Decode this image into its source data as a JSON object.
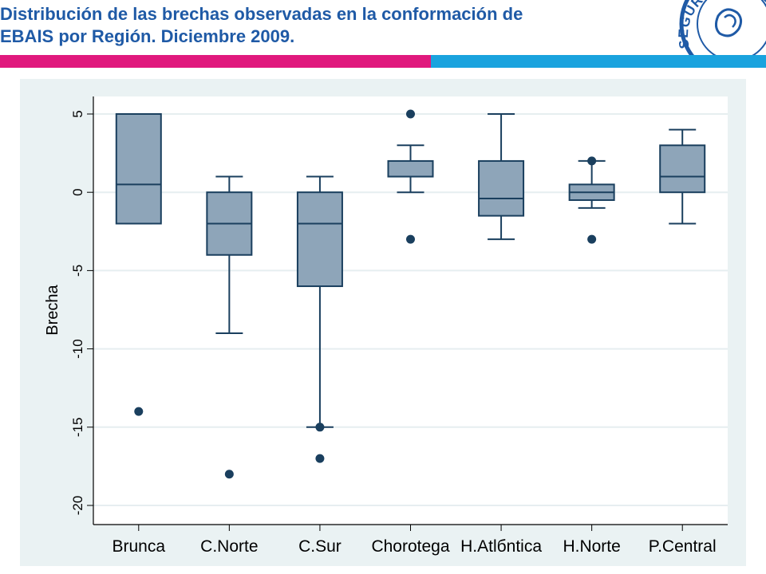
{
  "slide": {
    "title_line1": "Distribución de las brechas observadas en la conformación de",
    "title_line2": "EBAIS por Región. Diciembre 2009.",
    "logo_text": "SEGURO SOCIAL",
    "colors": {
      "title": "#1f5aa6",
      "pink_bar": "#e0197d",
      "blue_bar": "#1aa3de"
    }
  },
  "chart_data": {
    "type": "box",
    "ylabel": "Brecha",
    "xlabel": "",
    "ylim": [
      -21,
      6
    ],
    "yticks": [
      5,
      0,
      -5,
      -10,
      -15,
      -20
    ],
    "grid": true,
    "categories": [
      "Brunca",
      "C.Norte",
      "C.Sur",
      "Chorotega",
      "H.Atlбntica",
      "H.Norte",
      "P.Central"
    ],
    "boxes": [
      {
        "q1": -2,
        "median": 0.5,
        "q3": 5,
        "whisker_low": -2,
        "whisker_high": 5,
        "outliers": [
          -14
        ]
      },
      {
        "q1": -4,
        "median": -2,
        "q3": 0,
        "whisker_low": -9,
        "whisker_high": 1,
        "outliers": [
          -18
        ]
      },
      {
        "q1": -6,
        "median": -2,
        "q3": 0,
        "whisker_low": -15,
        "whisker_high": 1,
        "outliers": [
          -15,
          -17
        ]
      },
      {
        "q1": 1,
        "median": 1,
        "q3": 2,
        "whisker_low": 0,
        "whisker_high": 3,
        "outliers": [
          5,
          -3
        ]
      },
      {
        "q1": -1.5,
        "median": -0.4,
        "q3": 2,
        "whisker_low": -3,
        "whisker_high": 5,
        "outliers": []
      },
      {
        "q1": -0.5,
        "median": 0,
        "q3": 0.5,
        "whisker_low": -1,
        "whisker_high": 2,
        "outliers": [
          2,
          -3
        ]
      },
      {
        "q1": 0,
        "median": 1,
        "q3": 3,
        "whisker_low": -2,
        "whisker_high": 4,
        "outliers": []
      }
    ],
    "colors": {
      "box_fill": "#8ea5b9",
      "line": "#1a3f5e",
      "plot_bg": "#ffffff",
      "panel_bg": "#eaf2f3",
      "grid": "#e6eef0"
    }
  }
}
